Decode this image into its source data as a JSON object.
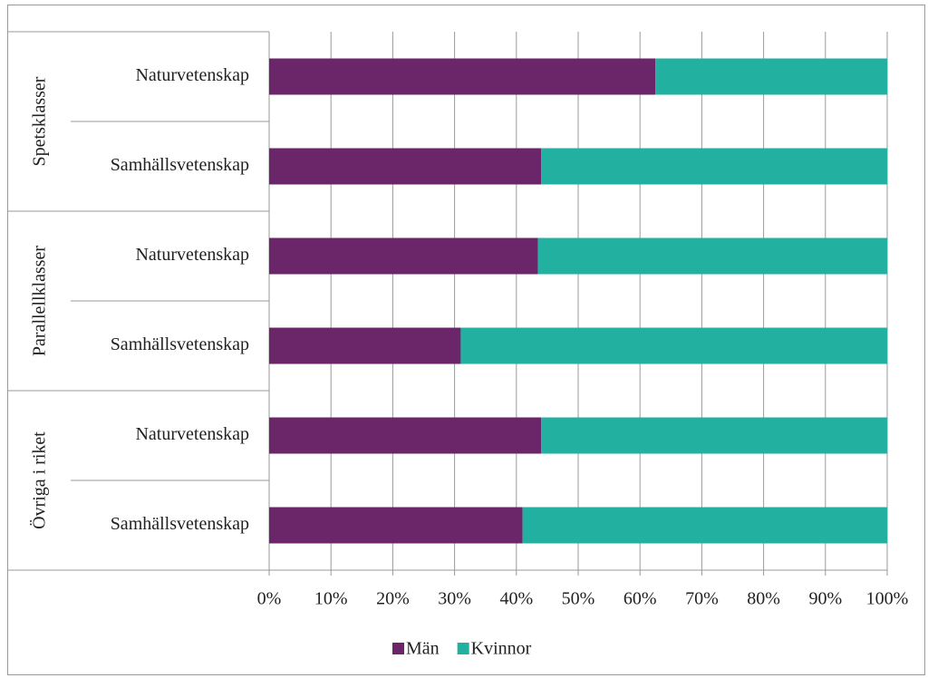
{
  "chart_data": {
    "type": "bar",
    "orientation": "horizontal",
    "stacked": true,
    "groups": [
      "Spetsklasser",
      "Parallellklasser",
      "Övriga i riket"
    ],
    "categories": [
      "Naturvetenskap",
      "Samhällsvetenskap",
      "Naturvetenskap",
      "Samhällsvetenskap",
      "Naturvetenskap",
      "Samhällsvetenskap"
    ],
    "series": [
      {
        "name": "Män",
        "color": "#6b2669",
        "values": [
          62.5,
          44,
          43.5,
          31,
          44,
          41
        ]
      },
      {
        "name": "Kvinnor",
        "color": "#22b0a0",
        "values": [
          37.5,
          56,
          56.5,
          69,
          56,
          59
        ]
      }
    ],
    "xlim": [
      0,
      100
    ],
    "xticks": [
      {
        "value": 0,
        "label": "0%"
      },
      {
        "value": 10,
        "label": "10%"
      },
      {
        "value": 20,
        "label": "20%"
      },
      {
        "value": 30,
        "label": "30%"
      },
      {
        "value": 40,
        "label": "40%"
      },
      {
        "value": 50,
        "label": "50%"
      },
      {
        "value": 60,
        "label": "60%"
      },
      {
        "value": 70,
        "label": "70%"
      },
      {
        "value": 80,
        "label": "80%"
      },
      {
        "value": 90,
        "label": "90%"
      },
      {
        "value": 100,
        "label": "100%"
      }
    ],
    "grid": true,
    "legend": "bottom"
  }
}
